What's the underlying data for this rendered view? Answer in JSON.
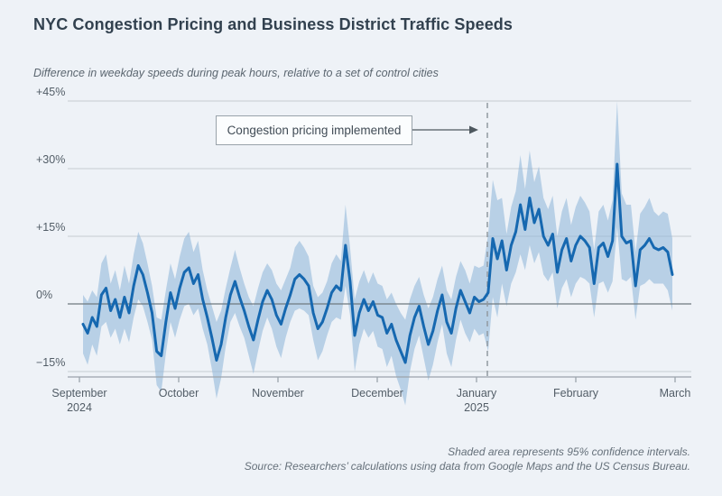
{
  "chart_data": {
    "type": "line",
    "title": "NYC Congestion Pricing and Business District Traffic Speeds",
    "subtitle": "Difference in weekday speeds during peak hours, relative to a set of control cities",
    "y_axis": {
      "unit": "percent",
      "range": [
        -20,
        48
      ],
      "gridlines": true,
      "ticks": [
        {
          "label": "+45%",
          "value": 45
        },
        {
          "label": "+30%",
          "value": 30
        },
        {
          "label": "+15%",
          "value": 15
        },
        {
          "label": "0%",
          "value": 0
        },
        {
          "label": "−15%",
          "value": -15
        }
      ]
    },
    "x_axis": {
      "ticks": [
        {
          "label": "September",
          "sub": "2024"
        },
        {
          "label": "October"
        },
        {
          "label": "November"
        },
        {
          "label": "December"
        },
        {
          "label": "January",
          "sub": "2025"
        },
        {
          "label": "February"
        },
        {
          "label": "March"
        }
      ]
    },
    "annotation": {
      "label": "Congestion pricing implemented",
      "marker": "dashed-vertical-line",
      "event_index": 88
    },
    "notes": {
      "ci_note": "Shaded area represents 95% confidence intervals.",
      "source": "Source: Researchers’ calculations using data from Google Maps and the US Census Bureau."
    },
    "series": [
      {
        "name": "Difference in weekday peak-hour speeds vs. control cities (%)",
        "color": "#1668b0",
        "band_color": "#8db4d9",
        "values": [
          -4.5,
          -6.5,
          -3,
          -5,
          2,
          3.5,
          -1.5,
          1,
          -3,
          1.5,
          -2,
          4,
          8.5,
          6.5,
          2.5,
          -2,
          -10.5,
          -11.5,
          -4,
          2.5,
          -1,
          3.5,
          7,
          8,
          4.5,
          6.5,
          1,
          -3,
          -7.5,
          -12.5,
          -9,
          -3,
          2,
          5,
          1.5,
          -1.5,
          -5,
          -8,
          -3.5,
          0.5,
          3,
          1,
          -2.5,
          -4.5,
          -1,
          2,
          5.5,
          6.5,
          5.5,
          4,
          -2,
          -5.5,
          -4,
          -1,
          2.5,
          4,
          3,
          13,
          5,
          -7,
          -2,
          1,
          -1.5,
          0.5,
          -2.5,
          -3,
          -6.5,
          -4.5,
          -8,
          -10.5,
          -13,
          -7,
          -3,
          -0.5,
          -5,
          -9,
          -6,
          -1.5,
          2,
          -4,
          -6.5,
          -1,
          3,
          0.5,
          -2,
          1.5,
          0.5,
          1,
          2.5,
          14.5,
          10,
          14,
          7.5,
          13,
          16,
          22,
          16.5,
          23.5,
          18,
          21,
          15,
          13,
          15.5,
          7,
          12,
          14.5,
          9.5,
          13,
          15,
          14,
          12.5,
          4.5,
          12.5,
          13.5,
          10.5,
          14,
          31,
          15,
          13.5,
          14,
          4,
          12,
          13,
          14.5,
          12.5,
          12,
          12.5,
          11.5,
          6.5
        ],
        "ci_halfwidth": [
          6.5,
          7,
          6,
          6.5,
          7,
          7.5,
          6,
          6.5,
          6,
          7,
          6.5,
          7,
          7.5,
          7,
          6.5,
          6,
          7.5,
          8,
          7,
          6.5,
          6.5,
          7,
          7.5,
          8,
          7,
          7.5,
          6.5,
          6,
          7,
          8.5,
          7.5,
          6.5,
          6,
          7,
          6.5,
          6,
          6.5,
          7.5,
          7,
          6.5,
          6,
          6.5,
          7,
          7.5,
          6.5,
          6,
          7,
          7.5,
          7,
          6.5,
          6,
          7,
          6.5,
          6,
          6.5,
          7,
          6.5,
          9,
          7.5,
          8,
          7,
          6.5,
          6,
          6.5,
          7,
          7,
          7.5,
          7,
          8,
          8.5,
          9.5,
          8,
          7,
          6.5,
          7,
          8,
          7.5,
          7,
          6.5,
          7,
          7.5,
          7,
          6.5,
          7,
          6.5,
          7,
          7.5,
          7.5,
          13,
          13,
          13,
          9.5,
          8,
          8.5,
          9,
          11,
          9,
          10.5,
          9,
          9.5,
          8.5,
          8,
          8.5,
          8,
          8.5,
          9,
          8,
          8.5,
          9,
          8.5,
          8,
          7.5,
          8,
          8.5,
          8,
          9,
          14,
          9.5,
          8.5,
          8,
          7.5,
          8,
          8.5,
          9,
          8,
          7.5,
          8,
          8.5,
          8
        ]
      }
    ],
    "colors": {
      "background": "#eef2f7",
      "gridline": "#c7ccd2",
      "zero_line": "#6f7980",
      "axis": "#9aa3ab",
      "dashed_event_line": "#9199a1",
      "title_text": "#32414f",
      "label_text": "#525d67"
    }
  }
}
